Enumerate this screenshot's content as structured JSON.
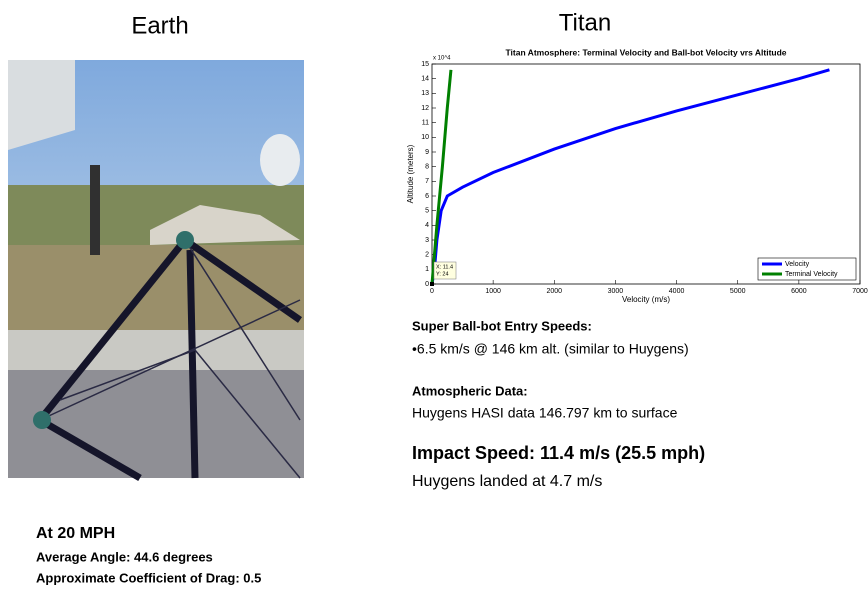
{
  "left": {
    "title": "Earth",
    "heading": "At 20 MPH",
    "lines": [
      "Average Angle: 44.6 degrees",
      "Approximate Coefficient of Drag: 0.5"
    ]
  },
  "right": {
    "title": "Titan",
    "sections": [
      {
        "heading": "Super Ball-bot Entry Speeds:",
        "lines": [
          "•6.5 km/s @ 146 km alt. (similar to Huygens)"
        ]
      },
      {
        "heading": "Atmospheric Data:",
        "lines": [
          "Huygens HASI data 146.797 km to surface"
        ]
      },
      {
        "heading": "Impact Speed: 11.4 m/s (25.5 mph)",
        "lines": [
          "Huygens landed at 4.7 m/s"
        ]
      }
    ]
  },
  "chart_data": {
    "type": "line",
    "title": "Titan Atmosphere: Terminal Velocity and Ball-bot Velocity vrs Altitude",
    "x_label": "Velocity (m/s)",
    "y_label": "Altitude (meters)",
    "y_multiplier": "x 10^4",
    "annotations": [
      "X: 11.4",
      "Y: 24"
    ],
    "xlim": [
      0,
      7000
    ],
    "xticks": [
      0,
      1000,
      2000,
      3000,
      4000,
      5000,
      6000,
      7000
    ],
    "ylim": [
      0,
      15
    ],
    "yticks": [
      0,
      1,
      2,
      3,
      4,
      5,
      6,
      7,
      8,
      9,
      10,
      11,
      12,
      13,
      14,
      15
    ],
    "legend": "lower right",
    "series": [
      {
        "name": "Velocity",
        "color": "#0000ff",
        "x": [
          0,
          40,
          80,
          150,
          250,
          500,
          1000,
          2000,
          3000,
          4000,
          5000,
          6000,
          6500
        ],
        "values": [
          0,
          1,
          3,
          5,
          6,
          6.6,
          7.6,
          9.2,
          10.6,
          11.8,
          12.9,
          14,
          14.6
        ]
      },
      {
        "name": "Terminal Velocity",
        "color": "#008000",
        "x": [
          0,
          80,
          170,
          250,
          310
        ],
        "values": [
          0,
          4,
          8,
          12,
          14.6
        ]
      }
    ]
  }
}
